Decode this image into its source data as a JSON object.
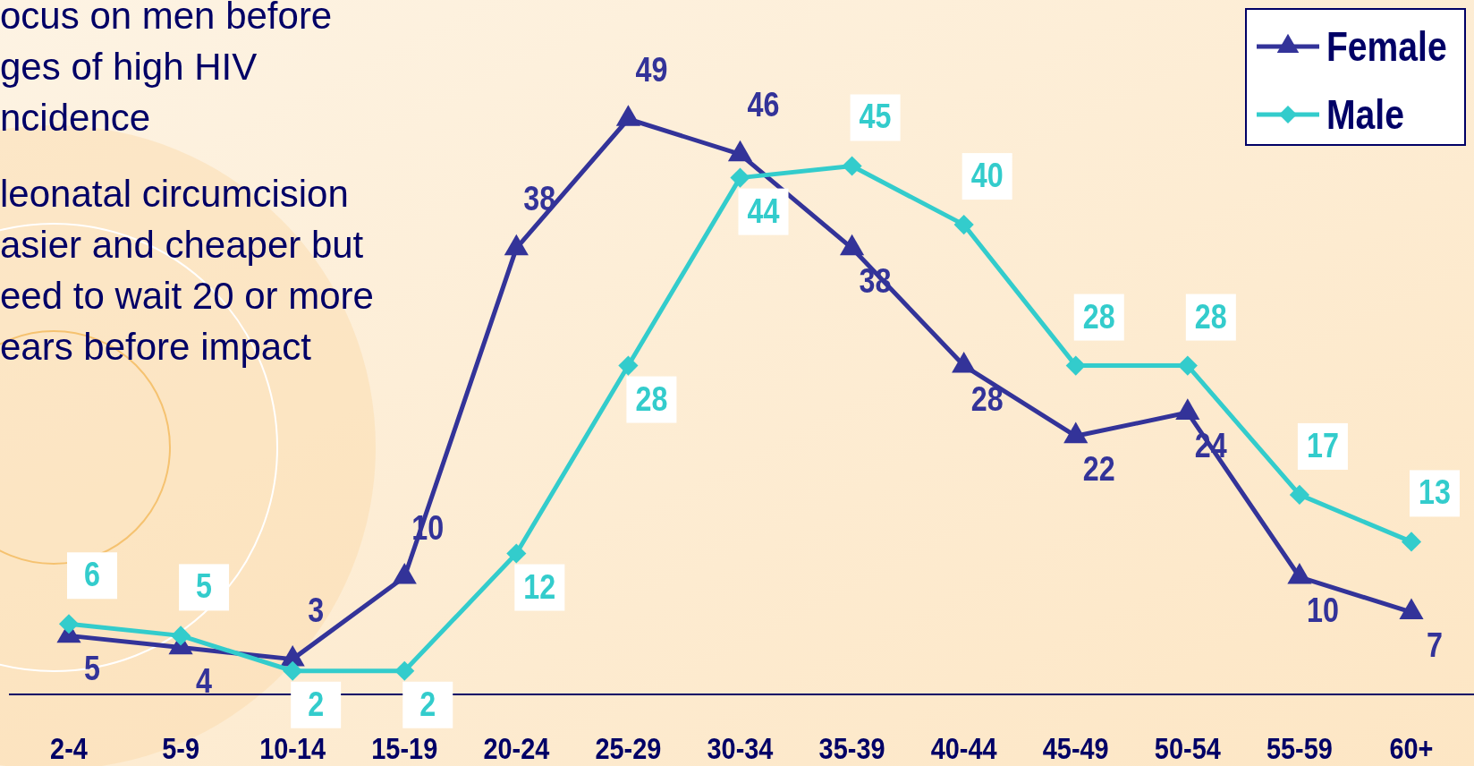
{
  "chart_data": {
    "type": "line",
    "categories": [
      "2-4",
      "5-9",
      "10-14",
      "15-19",
      "20-24",
      "25-29",
      "30-34",
      "35-39",
      "40-44",
      "45-49",
      "50-54",
      "55-59",
      "60+"
    ],
    "series": [
      {
        "name": "Female",
        "color": "#333399",
        "marker": "triangle",
        "values": [
          5,
          4,
          3,
          10,
          38,
          49,
          46,
          38,
          28,
          22,
          24,
          10,
          7
        ]
      },
      {
        "name": "Male",
        "color": "#33cccc",
        "marker": "diamond",
        "values": [
          6,
          5,
          2,
          2,
          12,
          28,
          44,
          45,
          40,
          28,
          28,
          17,
          13
        ]
      }
    ],
    "data_labels": true,
    "legend": "top right",
    "line_style": "solid",
    "annotations": [
      "ocus on men before",
      "ges of high HIV",
      "ncidence",
      "leonatal circumcision",
      "asier and cheaper but",
      "eed to wait 20 or more",
      "ears before impact"
    ]
  }
}
